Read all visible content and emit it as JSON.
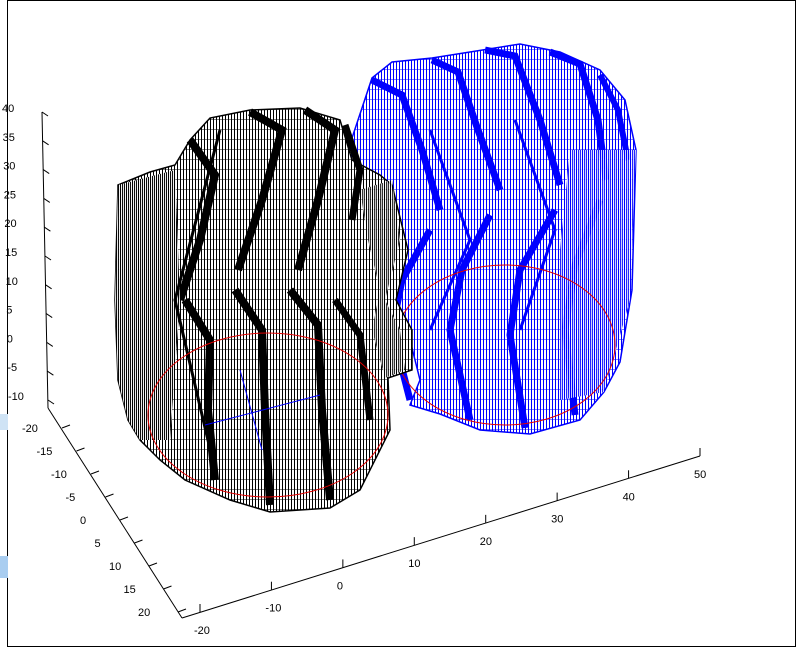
{
  "colors": {
    "left_gear": "#000000",
    "right_gear": "#0000ff",
    "pitch_circle": "#e00000",
    "axes": "#000000",
    "background": "#ffffff"
  },
  "chart_data": {
    "type": "3d-wireframe",
    "title": "",
    "series": [
      {
        "color": "#000000",
        "shape": "helical gear wireframe",
        "teeth_visible": 8
      },
      {
        "color": "#0000ff",
        "shape": "helical gear wireframe",
        "teeth_visible": 8
      }
    ],
    "z_axis": {
      "ticks": [
        "40",
        "35",
        "30",
        "25",
        "20",
        "15",
        "10",
        "5",
        "0",
        "-5",
        "-10"
      ],
      "range": [
        -10,
        40
      ]
    },
    "y_axis": {
      "ticks": [
        "-20",
        "-15",
        "-10",
        "-5",
        "0",
        "5",
        "10",
        "15",
        "20"
      ],
      "range": [
        -20,
        20
      ]
    },
    "x_axis": {
      "ticks": [
        "-20",
        "-10",
        "0",
        "10",
        "20",
        "30",
        "40",
        "50"
      ],
      "range": [
        -20,
        50
      ]
    },
    "grid": false,
    "legend": "none"
  }
}
